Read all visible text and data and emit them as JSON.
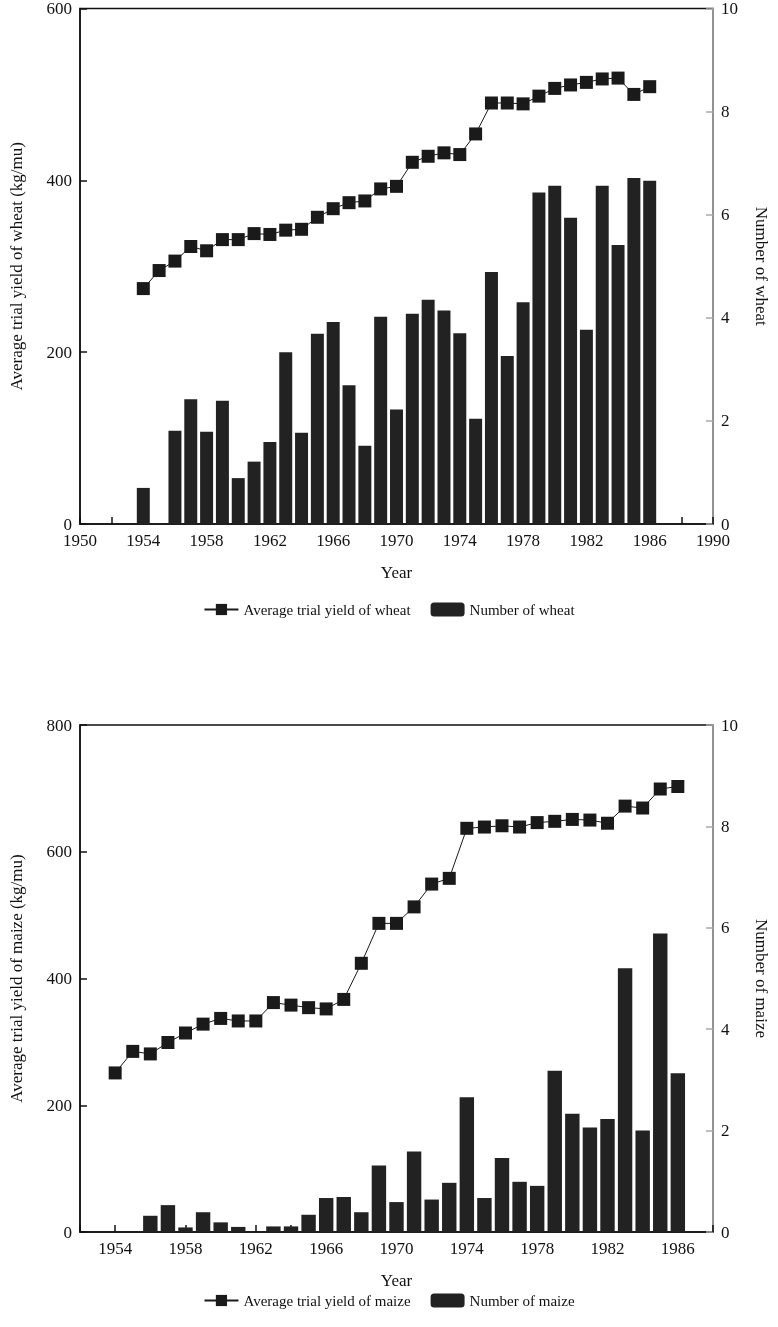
{
  "chart_data": [
    {
      "type": "bar",
      "xlabel": "Year",
      "ylabel": "Average trial yield of wheat (kg/mu)",
      "y2label": "Number of wheat",
      "x": [
        1954,
        1955,
        1956,
        1957,
        1958,
        1959,
        1960,
        1961,
        1962,
        1963,
        1964,
        1965,
        1966,
        1967,
        1968,
        1969,
        1970,
        1971,
        1972,
        1973,
        1974,
        1975,
        1976,
        1977,
        1978,
        1979,
        1980,
        1981,
        1982,
        1983,
        1984,
        1985,
        1986
      ],
      "series": [
        {
          "name": "Average trial yield of wheat",
          "type": "line",
          "color": "#1a1a1a",
          "values": [
            274,
            295,
            306,
            323,
            318,
            331,
            331,
            338,
            337,
            342,
            343,
            357,
            367,
            374,
            376,
            390,
            393,
            421,
            428,
            432,
            430,
            454,
            490,
            490,
            489,
            498,
            507,
            511,
            514,
            518,
            519,
            500,
            509
          ]
        },
        {
          "name": "Number of wheat",
          "axis": "y2",
          "color": "#222222",
          "values": [
            0.7,
            0.02,
            1.81,
            2.42,
            1.79,
            2.39,
            0.89,
            1.21,
            1.59,
            3.33,
            1.77,
            3.69,
            3.92,
            2.69,
            1.52,
            4.02,
            2.22,
            4.08,
            4.35,
            4.14,
            3.7,
            2.04,
            4.89,
            3.26,
            4.3,
            6.43,
            6.56,
            5.94,
            3.77,
            6.56,
            5.41,
            6.71,
            6.66
          ]
        }
      ],
      "xlim": [
        1950,
        1990
      ],
      "xticks": [
        1950,
        {
          "value": 1952,
          "label": null
        },
        1954,
        {
          "value": 1956,
          "label": null
        },
        1958,
        {
          "value": 1960,
          "label": null
        },
        1962,
        {
          "value": 1964,
          "label": null
        },
        1966,
        {
          "value": 1968,
          "label": null
        },
        1970,
        {
          "value": 1972,
          "label": null
        },
        1974,
        {
          "value": 1976,
          "label": null
        },
        1978,
        {
          "value": 1980,
          "label": null
        },
        1982,
        {
          "value": 1984,
          "label": null
        },
        1986,
        {
          "value": 1988,
          "label": null
        },
        1990
      ],
      "ylim": [
        0,
        600
      ],
      "yticks": [
        0,
        200,
        400,
        600
      ],
      "y2lim": [
        0,
        10
      ],
      "y2ticks": [
        0,
        2,
        4,
        6,
        8,
        10
      ],
      "legend": "bottom",
      "marker": "square",
      "grid": false
    },
    {
      "type": "bar",
      "xlabel": "Year",
      "ylabel": "Average trial yield of maize (kg/mu)",
      "y2label": "Number of maize",
      "x": [
        1954,
        1955,
        1956,
        1957,
        1958,
        1959,
        1960,
        1961,
        1962,
        1963,
        1964,
        1965,
        1966,
        1967,
        1968,
        1969,
        1970,
        1971,
        1972,
        1973,
        1974,
        1975,
        1976,
        1977,
        1978,
        1979,
        1980,
        1981,
        1982,
        1983,
        1984,
        1985,
        1986
      ],
      "series": [
        {
          "name": "Average trial yield of maize",
          "type": "line",
          "color": "#1a1a1a",
          "values": [
            251,
            285,
            281,
            299,
            314,
            328,
            337,
            333,
            333,
            362,
            358,
            354,
            352,
            367,
            424,
            487,
            487,
            513,
            549,
            558,
            637,
            639,
            641,
            639,
            646,
            648,
            651,
            650,
            645,
            672,
            669,
            699,
            703
          ]
        },
        {
          "name": "Number of maize",
          "axis": "y2",
          "color": "#222222",
          "values": [
            null,
            0,
            0.32,
            0.53,
            0.09,
            0.39,
            0.19,
            0.1,
            0,
            0.11,
            0.11,
            0.34,
            0.67,
            0.69,
            0.39,
            1.31,
            0.59,
            1.59,
            0.64,
            0.97,
            2.66,
            0.67,
            1.46,
            0.99,
            0.91,
            3.18,
            2.33,
            2.06,
            2.23,
            5.2,
            2.0,
            5.89,
            3.13
          ]
        }
      ],
      "xlim": [
        1952,
        1988
      ],
      "xticks": [
        {
          "value": 1952,
          "label": null
        },
        1954,
        {
          "value": 1956,
          "label": null
        },
        1958,
        {
          "value": 1960,
          "label": null
        },
        1962,
        {
          "value": 1964,
          "label": null
        },
        1966,
        {
          "value": 1968,
          "label": null
        },
        1970,
        {
          "value": 1972,
          "label": null
        },
        1974,
        {
          "value": 1976,
          "label": null
        },
        1978,
        {
          "value": 1980,
          "label": null
        },
        1982,
        {
          "value": 1984,
          "label": null
        },
        1986,
        {
          "value": 1988,
          "label": null
        }
      ],
      "ylim": [
        0,
        800
      ],
      "yticks": [
        0,
        200,
        400,
        600,
        800
      ],
      "y2lim": [
        0,
        10
      ],
      "y2ticks": [
        0,
        2,
        4,
        6,
        8,
        10
      ],
      "legend": "bottom",
      "marker": "square",
      "grid": false
    }
  ]
}
